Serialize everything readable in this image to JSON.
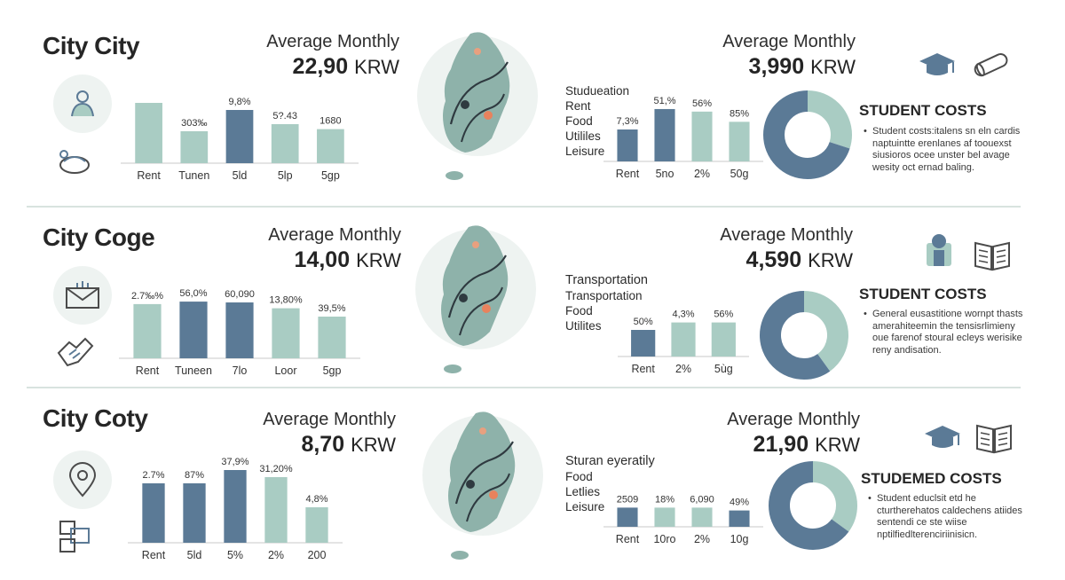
{
  "colors": {
    "light": "#a9ccc3",
    "dark": "#5b7a96",
    "map": "#8eb2aa",
    "mapbg": "#eef3f1",
    "accent": "#e8825d"
  },
  "rows": [
    {
      "city": "City City",
      "left_avg": {
        "title": "Average Monthly",
        "amount": "22,90",
        "unit": "KRW"
      },
      "right_avg": {
        "title": "Average Monthly",
        "amount": "3,990",
        "unit": "KRW"
      },
      "legend": [
        "Studueation",
        "Rent",
        "Food",
        "Utililes",
        "Leisure"
      ],
      "costs_title": "STUDENT COSTS",
      "costs_text": "Student costs:italens sn eln cardis naptuintte erenlanes af toouexst siusioros ocee unster bel avage wesity oct ernad baling.",
      "icons": {
        "left_top": "person-icon",
        "left_bottom": "bowl-icon",
        "right_a": "graduation-cap-icon",
        "right_b": "diploma-icon"
      }
    },
    {
      "city": "City Coge",
      "left_avg": {
        "title": "Average Monthly",
        "amount": "14,00",
        "unit": "KRW"
      },
      "right_avg": {
        "title": "Average Monthly",
        "amount": "4,590",
        "unit": "KRW"
      },
      "legend": [
        "Transportation",
        "Transportation",
        "Food",
        "Utilites"
      ],
      "costs_title": "STUDENT COSTS",
      "costs_text": "General eusastitione wornpt thasts amerahiteemin the tensisrlimieny oue farenof stoural ecleys werisike reny andisation.",
      "icons": {
        "left_top": "envelope-icon",
        "left_bottom": "handshake-icon",
        "right_a": "student-icon",
        "right_b": "open-book-icon"
      }
    },
    {
      "city": "City Coty",
      "left_avg": {
        "title": "Average Monthly",
        "amount": "8,70",
        "unit": "KRW"
      },
      "right_avg": {
        "title": "Average Monthly",
        "amount": "21,90",
        "unit": "KRW"
      },
      "legend": [
        "Sturan eyeratily",
        "Food",
        "Letlies",
        "Leisure"
      ],
      "costs_title": "STUDEMED COSTS",
      "costs_text": "Student educlsit etd he cturtherehatos caldechens atiides sentendi ce ste wiise nptilfiedlterenciriinisicn.",
      "icons": {
        "left_top": "location-pin-icon",
        "left_bottom": "documents-icon",
        "right_a": "graduation-cap-icon",
        "right_b": "open-book-icon"
      }
    }
  ],
  "chart_data": [
    {
      "type": "bar",
      "title": "",
      "categories": [
        "Rent",
        "Tunen",
        "5ld",
        "5lp",
        "5gp"
      ],
      "values": [
        85,
        45,
        75,
        55,
        48
      ],
      "labels": [
        "",
        "303‰",
        "9,8%",
        "5?.43",
        "1680"
      ],
      "colors": [
        "light",
        "light",
        "dark",
        "light",
        "light"
      ]
    },
    {
      "type": "bar",
      "title": "",
      "categories": [
        "Rent",
        "5no",
        "2%",
        "50g"
      ],
      "values": [
        50,
        82,
        78,
        62
      ],
      "labels": [
        "7,3%",
        "51,%",
        "56%",
        "85%"
      ],
      "colors": [
        "dark",
        "dark",
        "light",
        "light"
      ]
    },
    {
      "type": "pie",
      "title": "STUDENT COSTS",
      "values": [
        30,
        70
      ],
      "colors": [
        "light",
        "dark"
      ]
    },
    {
      "type": "bar",
      "title": "",
      "categories": [
        "Rent",
        "Tuneen",
        "7lo",
        "Loor",
        "5gp"
      ],
      "values": [
        65,
        68,
        67,
        60,
        50
      ],
      "labels": [
        "2.7‰%",
        "56,0%",
        "60,090",
        "13,80%",
        "39,5%"
      ],
      "colors": [
        "light",
        "dark",
        "dark",
        "light",
        "light"
      ]
    },
    {
      "type": "bar",
      "title": "",
      "categories": [
        "Rent",
        "2%",
        "5ùg"
      ],
      "values": [
        50,
        64,
        64
      ],
      "labels": [
        "50%",
        "4,3%",
        "56%"
      ],
      "colors": [
        "dark",
        "light",
        "light"
      ]
    },
    {
      "type": "pie",
      "title": "STUDENT COSTS",
      "values": [
        40,
        60
      ],
      "colors": [
        "light",
        "dark"
      ]
    },
    {
      "type": "bar",
      "title": "",
      "categories": [
        "Rent",
        "5ld",
        "5%",
        "2%",
        "200"
      ],
      "values": [
        67,
        67,
        82,
        74,
        40
      ],
      "labels": [
        "2.7%",
        "87%",
        "37,9%",
        "31,20%",
        "4,8%"
      ],
      "colors": [
        "dark",
        "dark",
        "dark",
        "light",
        "light"
      ]
    },
    {
      "type": "bar",
      "title": "",
      "categories": [
        "Rent",
        "10ro",
        "2%",
        "10g"
      ],
      "values": [
        47,
        47,
        47,
        40
      ],
      "labels": [
        "2509",
        "18%",
        "6,090",
        "49%"
      ],
      "colors": [
        "dark",
        "light",
        "light",
        "dark"
      ]
    },
    {
      "type": "pie",
      "title": "STUDEMED COSTS",
      "values": [
        35,
        65
      ],
      "colors": [
        "light",
        "dark"
      ]
    }
  ]
}
